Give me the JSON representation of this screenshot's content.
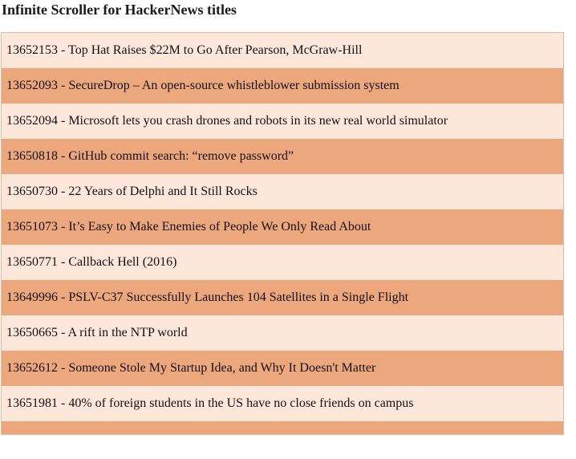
{
  "page": {
    "title": "Infinite Scroller for HackerNews titles"
  },
  "colors": {
    "row_light": "#fde6da",
    "row_dark": "#eca77d",
    "border": "#e8b899"
  },
  "items": [
    {
      "id": "13652153",
      "title": "Top Hat Raises $22M to Go After Pearson, McGraw-Hill"
    },
    {
      "id": "13652093",
      "title": "SecureDrop – An open-source whistleblower submission system"
    },
    {
      "id": "13652094",
      "title": "Microsoft lets you crash drones and robots in its new real world simulator"
    },
    {
      "id": "13650818",
      "title": "GitHub commit search: “remove password”"
    },
    {
      "id": "13650730",
      "title": "22 Years of Delphi and It Still Rocks"
    },
    {
      "id": "13651073",
      "title": "It’s Easy to Make Enemies of People We Only Read About"
    },
    {
      "id": "13650771",
      "title": "Callback Hell (2016)"
    },
    {
      "id": "13649996",
      "title": "PSLV-C37 Successfully Launches 104 Satellites in a Single Flight"
    },
    {
      "id": "13650665",
      "title": "A rift in the NTP world"
    },
    {
      "id": "13652612",
      "title": "Someone Stole My Startup Idea, and Why It Doesn't Matter"
    },
    {
      "id": "13651981",
      "title": "40% of foreign students in the US have no close friends on campus"
    }
  ]
}
